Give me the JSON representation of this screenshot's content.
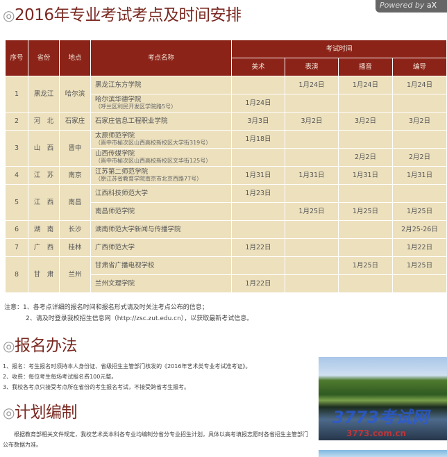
{
  "badge": {
    "powered_by": "Powered by",
    "brand": "aX"
  },
  "section1": {
    "title": "2016年专业考试考点及时间安排"
  },
  "table": {
    "headers": {
      "no": "序号",
      "province": "省份",
      "city": "地点",
      "site": "考点名称",
      "time": "考试时间",
      "art": "美术",
      "perform": "表演",
      "broadcast": "播音",
      "director": "编导"
    },
    "groups": [
      {
        "no": "1",
        "province": "黑龙江",
        "city": "哈尔滨",
        "rows": [
          {
            "site": "黑龙江东方学院",
            "addr": "",
            "art": "",
            "perform": "1月24日",
            "broadcast": "1月24日",
            "director": "1月24日"
          },
          {
            "site": "哈尔滨华德学院",
            "addr": "（呼兰区利民开发区学院路5号）",
            "art": "1月24日",
            "perform": "",
            "broadcast": "",
            "director": ""
          }
        ]
      },
      {
        "no": "2",
        "province": "河　北",
        "city": "石家庄",
        "rows": [
          {
            "site": "石家庄信息工程职业学院",
            "addr": "",
            "art": "3月3日",
            "perform": "3月2日",
            "broadcast": "3月2日",
            "director": "3月2日"
          }
        ]
      },
      {
        "no": "3",
        "province": "山　西",
        "city": "晋中",
        "rows": [
          {
            "site": "太原师范学院",
            "addr": "（晋中市榆次区山西高校新校区大学街319号）",
            "art": "1月18日",
            "perform": "",
            "broadcast": "",
            "director": ""
          },
          {
            "site": "山西传媒学院",
            "addr": "（晋中市榆次区山西高校新校区文华街125号）",
            "art": "",
            "perform": "",
            "broadcast": "2月2日",
            "director": "2月2日"
          }
        ]
      },
      {
        "no": "4",
        "province": "江　苏",
        "city": "南京",
        "rows": [
          {
            "site": "江苏第二师范学院",
            "addr": "（原江苏省教育学院南京市北京西路77号）",
            "art": "1月31日",
            "perform": "1月31日",
            "broadcast": "1月31日",
            "director": "1月31日"
          }
        ]
      },
      {
        "no": "5",
        "province": "江　西",
        "city": "南昌",
        "rows": [
          {
            "site": "江西科技师范大学",
            "addr": "",
            "art": "1月23日",
            "perform": "",
            "broadcast": "",
            "director": ""
          },
          {
            "site": "南昌师范学院",
            "addr": "",
            "art": "",
            "perform": "1月25日",
            "broadcast": "1月25日",
            "director": "1月25日"
          }
        ]
      },
      {
        "no": "6",
        "province": "湖　南",
        "city": "长沙",
        "rows": [
          {
            "site": "湖南师范大学新闻与传播学院",
            "addr": "",
            "art": "",
            "perform": "",
            "broadcast": "",
            "director": "2月25-26日"
          }
        ]
      },
      {
        "no": "7",
        "province": "广　西",
        "city": "桂林",
        "rows": [
          {
            "site": "广西师范大学",
            "addr": "",
            "art": "1月22日",
            "perform": "",
            "broadcast": "",
            "director": "1月22日"
          }
        ]
      },
      {
        "no": "8",
        "province": "甘　肃",
        "city": "兰州",
        "rows": [
          {
            "site": "甘肃省广播电视学校",
            "addr": "",
            "art": "",
            "perform": "",
            "broadcast": "1月25日",
            "director": "1月25日"
          },
          {
            "site": "兰州文理学院",
            "addr": "",
            "art": "1月22日",
            "perform": "",
            "broadcast": "",
            "director": ""
          }
        ]
      }
    ]
  },
  "notes": {
    "line1": "注意：1、各考点详细的报名时间和报名形式请及时关注考点公布的信息；",
    "line2": "2、请及时登录我校招生信息网（http://zsc.zut.edu.cn），以获取最新考试信息。"
  },
  "section2": {
    "title": "报名办法",
    "items": [
      "1、报名：考生报名时须持本人身份证、省级招生主管部门核发的《2016年艺术类专业考试准考证》。",
      "2、收费：每位考生每场考试报名费100元整。",
      "3、我校各考点只接受考点所在省份的考生报名考试，不接受跨省考生报考。"
    ]
  },
  "section3": {
    "title": "计划编制",
    "text": "根据教育部相关文件规定，我校艺术类本科各专业均编制分省分专业招生计划，具体以高考填报志愿时各省招生主管部门公布数据为准。"
  },
  "photo": {
    "watermark": "3773考试网",
    "watermark_url": "3773.com.cn"
  }
}
